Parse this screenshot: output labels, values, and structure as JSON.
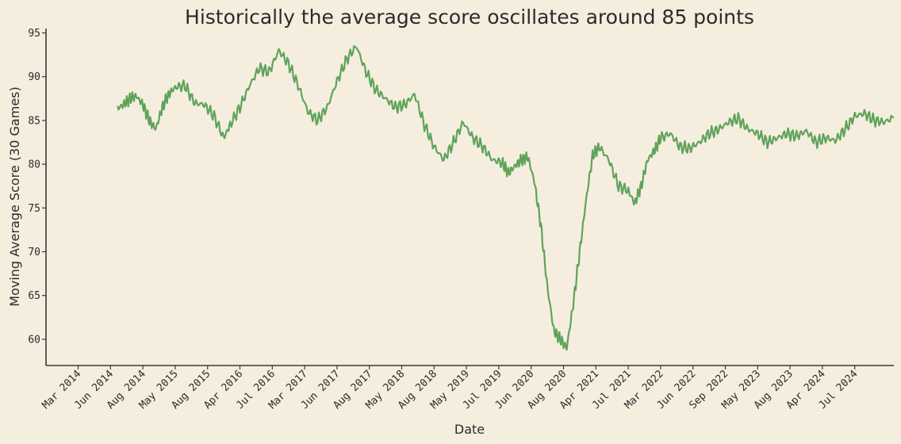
{
  "chart_data": {
    "type": "line",
    "title": "Historically the average score oscillates around 85 points",
    "xlabel": "Date",
    "ylabel": "Moving Average Score (30 Games)",
    "ylim": [
      57,
      95.5
    ],
    "yticks": [
      60,
      65,
      70,
      75,
      80,
      85,
      90,
      95
    ],
    "xticks": [
      "Mar 2014",
      "Jun 2014",
      "Aug 2014",
      "May 2015",
      "Aug 2015",
      "Apr 2016",
      "Jul 2016",
      "Mar 2017",
      "Jun 2017",
      "Aug 2017",
      "May 2018",
      "Aug 2018",
      "May 2019",
      "Jul 2019",
      "Jun 2020",
      "Aug 2020",
      "Apr 2021",
      "Jul 2021",
      "Mar 2022",
      "Jun 2022",
      "Sep 2022",
      "May 2023",
      "Aug 2023",
      "Apr 2024",
      "Jul 2024"
    ],
    "grid": false,
    "color": "#5fa35a",
    "series": [
      {
        "x": [
          1.2,
          1.4,
          1.6,
          1.8,
          2.0,
          2.2,
          2.4,
          2.6,
          2.8,
          3.0,
          3.3,
          3.6,
          3.9,
          4.2,
          4.5,
          4.7,
          5.0,
          5.3,
          5.6,
          5.9,
          6.2,
          6.5,
          6.8,
          7.1,
          7.4,
          7.7,
          8.0,
          8.3,
          8.6,
          8.9,
          9.2,
          9.5,
          9.8,
          10.1,
          10.4,
          10.7,
          11.0,
          11.3,
          11.6,
          11.9,
          12.2,
          12.5,
          12.8,
          13.1,
          13.3,
          13.5,
          13.7,
          13.9,
          14.1,
          14.3,
          14.5,
          14.7,
          14.9,
          15.1,
          15.3,
          15.5,
          15.7,
          15.9,
          16.1,
          16.4,
          16.7,
          17.0,
          17.2,
          17.4,
          17.6,
          17.8,
          18.0,
          18.3,
          18.6,
          18.9,
          19.2,
          19.5,
          19.8,
          20.1,
          20.4,
          20.7,
          21.0,
          21.3,
          21.6,
          21.9,
          22.2,
          22.5,
          22.8,
          23.1,
          23.4,
          23.7,
          24.0,
          24.3,
          24.6,
          24.9,
          25.2
        ],
        "y": [
          86.3,
          86.8,
          87.5,
          87.8,
          86.8,
          85.0,
          84.0,
          86.5,
          88.0,
          88.8,
          89.0,
          87.0,
          86.8,
          85.5,
          83.0,
          84.5,
          86.5,
          89.0,
          91.0,
          90.5,
          93.0,
          91.5,
          89.0,
          86.0,
          85.0,
          86.5,
          89.5,
          92.0,
          93.5,
          90.5,
          88.5,
          87.5,
          86.5,
          86.8,
          88.0,
          84.5,
          82.0,
          80.5,
          82.5,
          84.8,
          83.0,
          82.0,
          80.5,
          80.2,
          79.0,
          79.8,
          80.5,
          80.8,
          78.0,
          73.0,
          66.0,
          61.0,
          60.0,
          59.0,
          64.0,
          70.0,
          76.0,
          81.0,
          82.0,
          80.5,
          77.5,
          77.0,
          75.5,
          77.5,
          80.5,
          81.5,
          83.0,
          83.5,
          82.0,
          81.8,
          82.5,
          83.5,
          84.0,
          84.8,
          85.2,
          84.0,
          83.5,
          82.5,
          83.0,
          83.5,
          83.2,
          83.8,
          82.5,
          83.0,
          82.7,
          84.0,
          85.5,
          85.8,
          85.0,
          84.8,
          85.3
        ]
      }
    ]
  }
}
